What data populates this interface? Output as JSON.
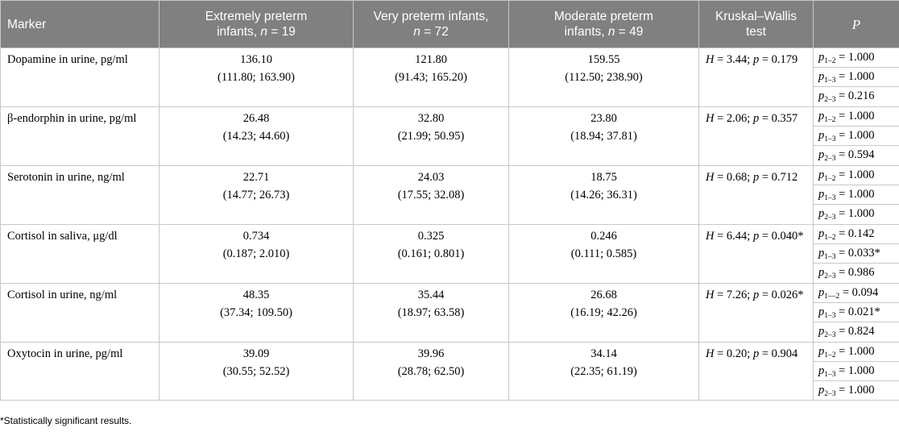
{
  "headers": {
    "marker": "Marker",
    "g1_line1": "Extremely preterm",
    "g1_line2": "infants,",
    "g1_n": "n",
    "g1_nval": " = 19",
    "g2_line1": "Very preterm infants,",
    "g2_n": "n",
    "g2_nval": " = 72",
    "g3_line1": "Moderate preterm",
    "g3_line2": "infants,",
    "g3_n": "n",
    "g3_nval": " = 49",
    "kw": "Kruskal–Wallis test",
    "p": "P"
  },
  "rows": [
    {
      "marker": "Dopamine in urine, pg/ml",
      "g1_median": "136.10",
      "g1_iqr": "(111.80; 163.90)",
      "g2_median": "121.80",
      "g2_iqr": "(91.43; 165.20)",
      "g3_median": "159.55",
      "g3_iqr": "(112.50; 238.90)",
      "kw_h": "3.44",
      "kw_p": "0.179",
      "kw_sig": "",
      "pvals": [
        {
          "sub": "1–2",
          "val": " = 1.000"
        },
        {
          "sub": "1–3",
          "val": " = 1.000"
        },
        {
          "sub": "2–3",
          "val": " = 0.216"
        }
      ]
    },
    {
      "marker": "β-endorphin in urine, pg/ml",
      "g1_median": "26.48",
      "g1_iqr": "(14.23; 44.60)",
      "g2_median": "32.80",
      "g2_iqr": "(21.99; 50.95)",
      "g3_median": "23.80",
      "g3_iqr": "(18.94; 37.81)",
      "kw_h": "2.06",
      "kw_p": "0.357",
      "kw_sig": "",
      "pvals": [
        {
          "sub": "1–2",
          "val": " = 1.000"
        },
        {
          "sub": "1–3",
          "val": " = 1.000"
        },
        {
          "sub": "2–3",
          "val": " = 0.594"
        }
      ]
    },
    {
      "marker": "Serotonin in urine, ng/ml",
      "g1_median": "22.71",
      "g1_iqr": "(14.77; 26.73)",
      "g2_median": "24.03",
      "g2_iqr": "(17.55; 32.08)",
      "g3_median": "18.75",
      "g3_iqr": "(14.26; 36.31)",
      "kw_h": "0.68",
      "kw_p": "0.712",
      "kw_sig": "",
      "pvals": [
        {
          "sub": "1–2",
          "val": " = 1.000"
        },
        {
          "sub": "1–3",
          "val": " = 1.000"
        },
        {
          "sub": "2–3",
          "val": " = 1.000"
        }
      ]
    },
    {
      "marker": "Cortisol in saliva, μg/dl",
      "g1_median": "0.734",
      "g1_iqr": "(0.187; 2.010)",
      "g2_median": "0.325",
      "g2_iqr": "(0.161; 0.801)",
      "g3_median": "0.246",
      "g3_iqr": "(0.111; 0.585)",
      "kw_h": "6.44",
      "kw_p": "0.040",
      "kw_sig": "*",
      "pvals": [
        {
          "sub": "1–2",
          "val": " = 0.142"
        },
        {
          "sub": "1–3",
          "val": " = 0.033*"
        },
        {
          "sub": "2–3",
          "val": " = 0.986"
        }
      ]
    },
    {
      "marker": "Cortisol in urine, ng/ml",
      "g1_median": "48.35",
      "g1_iqr": "(37.34; 109.50)",
      "g2_median": "35.44",
      "g2_iqr": "(18.97; 63.58)",
      "g3_median": "26.68",
      "g3_iqr": "(16.19; 42.26)",
      "kw_h": "7.26",
      "kw_p": "0.026",
      "kw_sig": "*",
      "pvals": [
        {
          "sub": "1––2",
          "val": " = 0.094"
        },
        {
          "sub": "1–3",
          "val": " = 0.021*"
        },
        {
          "sub": "2–3",
          "val": " = 0.824"
        }
      ]
    },
    {
      "marker": "Oxytocin in urine, pg/ml",
      "g1_median": "39.09",
      "g1_iqr": "(30.55; 52.52)",
      "g2_median": "39.96",
      "g2_iqr": "(28.78; 62.50)",
      "g3_median": "34.14",
      "g3_iqr": "(22.35; 61.19)",
      "kw_h": "0.20",
      "kw_p": "0.904",
      "kw_sig": "",
      "pvals": [
        {
          "sub": "1–2",
          "val": " = 1.000"
        },
        {
          "sub": "1–3",
          "val": " = 1.000"
        },
        {
          "sub": "2–3",
          "val": " = 1.000"
        }
      ]
    }
  ],
  "kw_labels": {
    "h": "H",
    "p": "p",
    "eq": " = ",
    "sep": "; "
  },
  "p_label": "p",
  "footnote": "*Statistically significant results."
}
